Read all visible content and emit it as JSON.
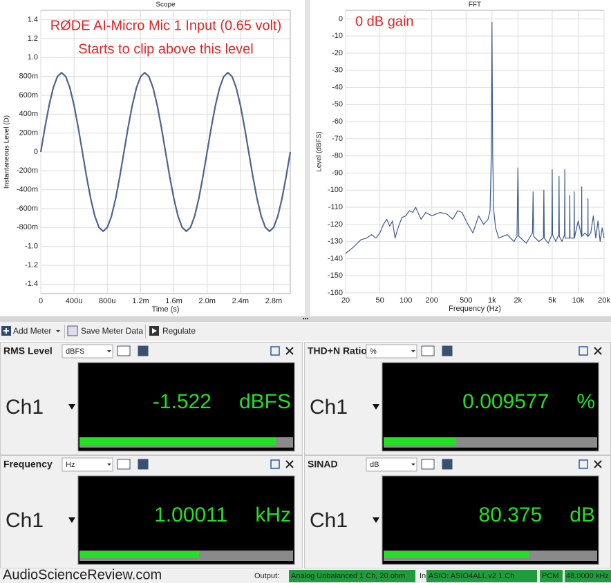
{
  "chart_data": [
    {
      "type": "line",
      "title": "Scope",
      "annotations": [
        "RØDE AI-Micro Mic 1 Input (0.65 volt)",
        "Starts to clip above this level"
      ],
      "x_label": "Time (s)",
      "y_label": "Instantaneous Level (D)",
      "color": "#4a6491",
      "x": [
        0,
        5e-05,
        0.0001,
        0.00015,
        0.0002,
        0.00025,
        0.0003,
        0.00035,
        0.0004,
        0.00045,
        0.0005,
        0.00055,
        0.0006,
        0.00065,
        0.0007,
        0.00075,
        0.0008,
        0.00085,
        0.0009,
        0.00095,
        0.001,
        0.00105,
        0.0011,
        0.00115,
        0.0012,
        0.00125,
        0.0013,
        0.00135,
        0.0014,
        0.00145,
        0.0015,
        0.00155,
        0.0016,
        0.00165,
        0.0017,
        0.00175,
        0.0018,
        0.00185,
        0.0019,
        0.00195,
        0.002,
        0.00205,
        0.0021,
        0.00215,
        0.0022,
        0.00225,
        0.0023,
        0.00235,
        0.0024,
        0.00245,
        0.0025,
        0.00255,
        0.0026,
        0.00265,
        0.0027,
        0.00275,
        0.0028,
        0.00285,
        0.0029,
        0.00295,
        0.003
      ],
      "values": [
        0,
        0.26,
        0.494,
        0.68,
        0.799,
        0.84,
        0.799,
        0.68,
        0.494,
        0.26,
        0,
        -0.26,
        -0.494,
        -0.68,
        -0.799,
        -0.84,
        -0.799,
        -0.68,
        -0.494,
        -0.26,
        0,
        0.26,
        0.494,
        0.68,
        0.799,
        0.84,
        0.799,
        0.68,
        0.494,
        0.26,
        0,
        -0.26,
        -0.494,
        -0.68,
        -0.799,
        -0.84,
        -0.799,
        -0.68,
        -0.494,
        -0.26,
        0,
        0.26,
        0.494,
        0.68,
        0.799,
        0.84,
        0.799,
        0.68,
        0.494,
        0.26,
        0,
        -0.26,
        -0.494,
        -0.68,
        -0.799,
        -0.84,
        -0.799,
        -0.68,
        -0.494,
        -0.26,
        0
      ],
      "xlim": [
        0,
        0.003
      ],
      "xticks": [
        0,
        {
          "value": 0.0004,
          "label": "400u"
        },
        {
          "value": 0.0008,
          "label": "800u"
        },
        {
          "value": 0.0012,
          "label": "1.2m"
        },
        {
          "value": 0.0016,
          "label": "1.6m"
        },
        {
          "value": 0.002,
          "label": "2.0m"
        },
        {
          "value": 0.0024,
          "label": "2.4m"
        },
        {
          "value": 0.0028,
          "label": "2.8m"
        }
      ],
      "ylim": [
        -1.5,
        1.5
      ],
      "yticks": [
        1.4,
        1.2,
        {
          "value": 1,
          "label": "1.0"
        },
        {
          "value": 0.8,
          "label": "800m"
        },
        {
          "value": 0.6,
          "label": "600m"
        },
        {
          "value": 0.4,
          "label": "400m"
        },
        {
          "value": 0.2,
          "label": "200m"
        },
        0,
        {
          "value": -0.2,
          "label": "-200m"
        },
        {
          "value": -0.4,
          "label": "-400m"
        },
        {
          "value": -0.6,
          "label": "-600m"
        },
        {
          "value": -0.8,
          "label": "-800m"
        },
        {
          "value": -1,
          "label": "-1.0"
        },
        -1.2,
        -1.4
      ],
      "grid": true
    },
    {
      "type": "line",
      "title": "FFT",
      "annotations": [
        "0 dB gain"
      ],
      "x_label": "Frequency (Hz)",
      "y_label": "Level (dBFS)",
      "color": "#3d5a8a",
      "xscale": "log",
      "x": [
        20,
        25,
        30,
        35,
        40,
        45,
        50,
        55,
        60,
        65,
        70,
        75,
        80,
        90,
        100,
        110,
        120,
        130,
        150,
        170,
        200,
        250,
        300,
        350,
        400,
        450,
        500,
        600,
        700,
        800,
        900,
        950,
        980,
        1000,
        1020,
        1050,
        1100,
        1200,
        1500,
        1800,
        1950,
        2000,
        2050,
        2500,
        2950,
        3000,
        3050,
        3500,
        3950,
        4000,
        4050,
        4500,
        4950,
        5000,
        5050,
        5500,
        5950,
        6000,
        6050,
        6500,
        6950,
        7000,
        7050,
        7950,
        8000,
        8050,
        8950,
        9000,
        9050,
        10000,
        10950,
        11000,
        11050,
        12000,
        12950,
        13000,
        13050,
        14000,
        15000,
        16000,
        17000,
        18000,
        19000,
        20000
      ],
      "values": [
        -137,
        -133,
        -129,
        -128,
        -126,
        -128,
        -125,
        -120,
        -117,
        -121,
        -118,
        -128,
        -123,
        -116,
        -115,
        -112,
        -113,
        -110,
        -117,
        -113,
        -115,
        -113,
        -114,
        -117,
        -112,
        -113,
        -118,
        -125,
        -115,
        -120,
        -117,
        -112,
        -80,
        -2,
        -80,
        -112,
        -122,
        -128,
        -126,
        -130,
        -127,
        -87,
        -127,
        -131,
        -125,
        -101,
        -127,
        -130,
        -128,
        -100,
        -128,
        -131,
        -126,
        -88,
        -126,
        -130,
        -126,
        -92,
        -127,
        -130,
        -126,
        -88,
        -128,
        -128,
        -103,
        -128,
        -128,
        -101,
        -128,
        -118,
        -127,
        -98,
        -127,
        -125,
        -127,
        -105,
        -127,
        -125,
        -115,
        -128,
        -118,
        -130,
        -122,
        -128
      ],
      "xlim": [
        20,
        20000
      ],
      "xticks": [
        20,
        50,
        100,
        200,
        500,
        {
          "value": 1000,
          "label": "1k"
        },
        {
          "value": 2000,
          "label": "2k"
        },
        {
          "value": 5000,
          "label": "5k"
        },
        {
          "value": 10000,
          "label": "10k"
        },
        {
          "value": 20000,
          "label": "20k"
        }
      ],
      "ylim": [
        -160,
        5
      ],
      "yticks": [
        0,
        -10,
        -20,
        -30,
        -40,
        -50,
        -60,
        -70,
        -80,
        -90,
        -100,
        -110,
        -120,
        -130,
        -140,
        -150,
        -160
      ],
      "grid": true
    }
  ],
  "toolbar": {
    "add_meter": "Add Meter",
    "save": "Save Meter Data",
    "regulate": "Regulate"
  },
  "meters": [
    {
      "title": "RMS Level",
      "unit_select": "dBFS",
      "channel": "Ch1",
      "value": "-1.522",
      "unit": "dBFS",
      "bar": 0.92
    },
    {
      "title": "THD+N Ratio",
      "unit_select": "%",
      "channel": "Ch1",
      "value": "0.009577",
      "unit": "%",
      "bar": 0.34
    },
    {
      "title": "Frequency",
      "unit_select": "Hz",
      "channel": "Ch1",
      "value": "1.00011",
      "unit": "kHz",
      "bar": 0.56
    },
    {
      "title": "SINAD",
      "unit_select": "dB",
      "channel": "Ch1",
      "value": "80.375",
      "unit": "dB",
      "bar": 0.68
    }
  ],
  "status": {
    "brand": "AudioScienceReview.com",
    "output_label": "Output:",
    "output": "Analog Unbalanced 1 Ch, 20 ohm",
    "input_label": "Input:",
    "input": "ASIO: ASIO4ALL v2 1 Ch",
    "format": "PCM",
    "rate": "48.0000 kHz"
  }
}
